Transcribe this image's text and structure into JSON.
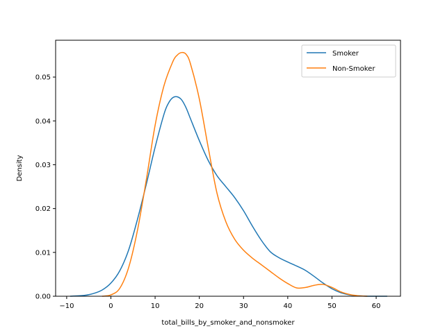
{
  "chart_data": {
    "type": "line",
    "title": "",
    "xlabel": "total_bills_by_smoker_and_nonsmoker",
    "ylabel": "Density",
    "xlim": [
      -12.5,
      65.5
    ],
    "ylim": [
      0,
      0.0584
    ],
    "xticks": [
      -10,
      0,
      10,
      20,
      30,
      40,
      50,
      60
    ],
    "yticks": [
      0.0,
      0.01,
      0.02,
      0.03,
      0.04,
      0.05
    ],
    "ytick_labels": [
      "0.00",
      "0.01",
      "0.02",
      "0.03",
      "0.04",
      "0.05"
    ],
    "grid": false,
    "legend_position": "upper right",
    "series": [
      {
        "name": "Smoker",
        "color": "#1f77b4",
        "x": [
          -9.2,
          -6,
          -4,
          -2,
          0,
          2,
          4,
          6,
          8,
          10,
          12,
          13,
          14,
          15,
          16,
          17,
          18,
          20,
          22,
          24,
          26,
          28,
          30,
          32,
          34,
          36,
          38,
          40,
          42,
          44,
          46,
          48,
          50,
          52,
          54,
          56,
          58,
          60,
          62.5
        ],
        "y": [
          0.0,
          0.0002,
          0.0006,
          0.0014,
          0.003,
          0.0058,
          0.0105,
          0.0175,
          0.0255,
          0.034,
          0.0415,
          0.044,
          0.0453,
          0.0455,
          0.0448,
          0.043,
          0.0405,
          0.0355,
          0.031,
          0.0275,
          0.025,
          0.0225,
          0.0195,
          0.016,
          0.0128,
          0.0102,
          0.0088,
          0.0078,
          0.0069,
          0.0059,
          0.0045,
          0.003,
          0.0017,
          0.0008,
          0.0003,
          0.0001,
          0.0,
          0.0,
          0.0
        ]
      },
      {
        "name": "Non-Smoker",
        "color": "#ff7f0e",
        "x": [
          -2,
          0,
          2,
          4,
          6,
          8,
          10,
          12,
          14,
          15,
          16,
          17,
          18,
          20,
          22,
          24,
          26,
          28,
          30,
          32,
          34,
          36,
          38,
          40,
          42,
          44,
          46,
          48,
          50,
          52,
          54,
          56,
          58
        ],
        "y": [
          0.0,
          0.0003,
          0.0018,
          0.0065,
          0.015,
          0.0265,
          0.039,
          0.048,
          0.0535,
          0.055,
          0.0556,
          0.0552,
          0.053,
          0.045,
          0.034,
          0.0235,
          0.017,
          0.013,
          0.0105,
          0.0087,
          0.0072,
          0.0057,
          0.0042,
          0.0029,
          0.0019,
          0.002,
          0.0025,
          0.0027,
          0.002,
          0.001,
          0.0004,
          0.0001,
          0.0
        ]
      }
    ]
  },
  "legend": {
    "items": [
      {
        "label": "Smoker",
        "color": "#1f77b4"
      },
      {
        "label": "Non-Smoker",
        "color": "#ff7f0e"
      }
    ]
  }
}
